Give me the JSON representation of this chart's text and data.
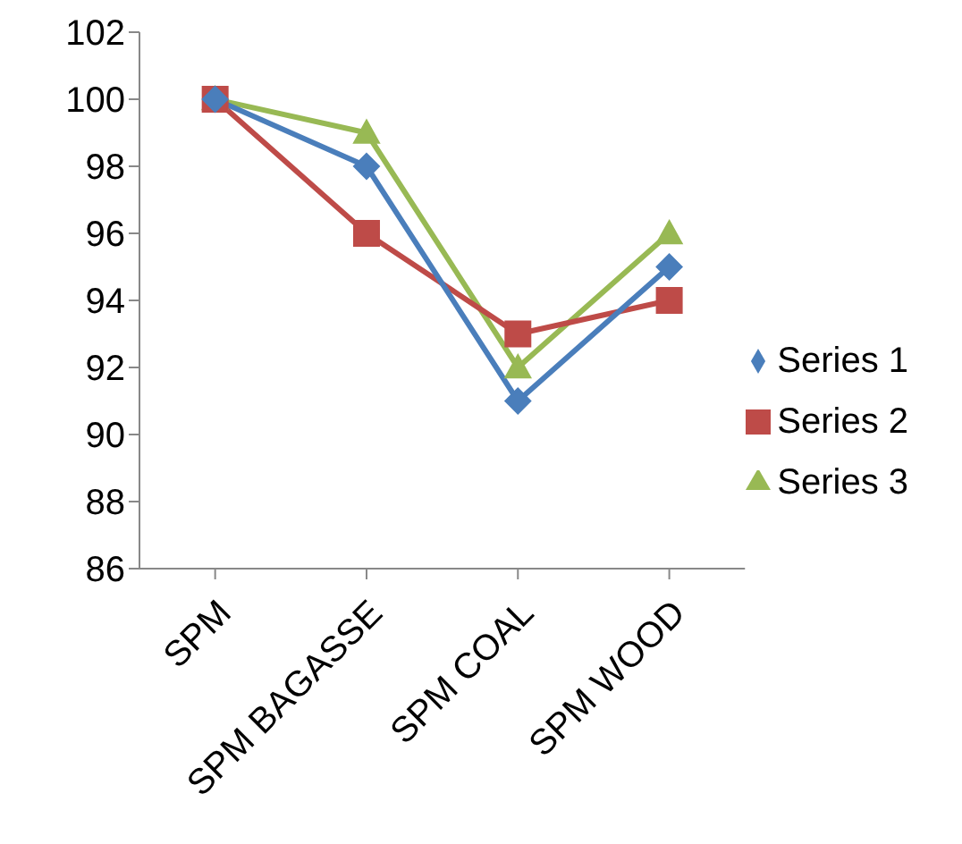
{
  "chart_data": {
    "type": "line",
    "categories": [
      "SPM",
      "SPM BAGASSE",
      "SPM COAL",
      "SPM WOOD"
    ],
    "series": [
      {
        "name": "Series 1",
        "color": "#4a7ebb",
        "marker": "diamond",
        "values": [
          100,
          98,
          91,
          95
        ]
      },
      {
        "name": "Series 2",
        "color": "#be4b48",
        "marker": "square",
        "values": [
          100,
          96,
          93,
          94
        ]
      },
      {
        "name": "Series 3",
        "color": "#98b954",
        "marker": "triangle",
        "values": [
          100,
          99,
          92,
          96
        ]
      }
    ],
    "ylim": [
      86,
      102
    ],
    "yticks": [
      86,
      88,
      90,
      92,
      94,
      96,
      98,
      100,
      102
    ],
    "grid": false,
    "legend": "right"
  }
}
